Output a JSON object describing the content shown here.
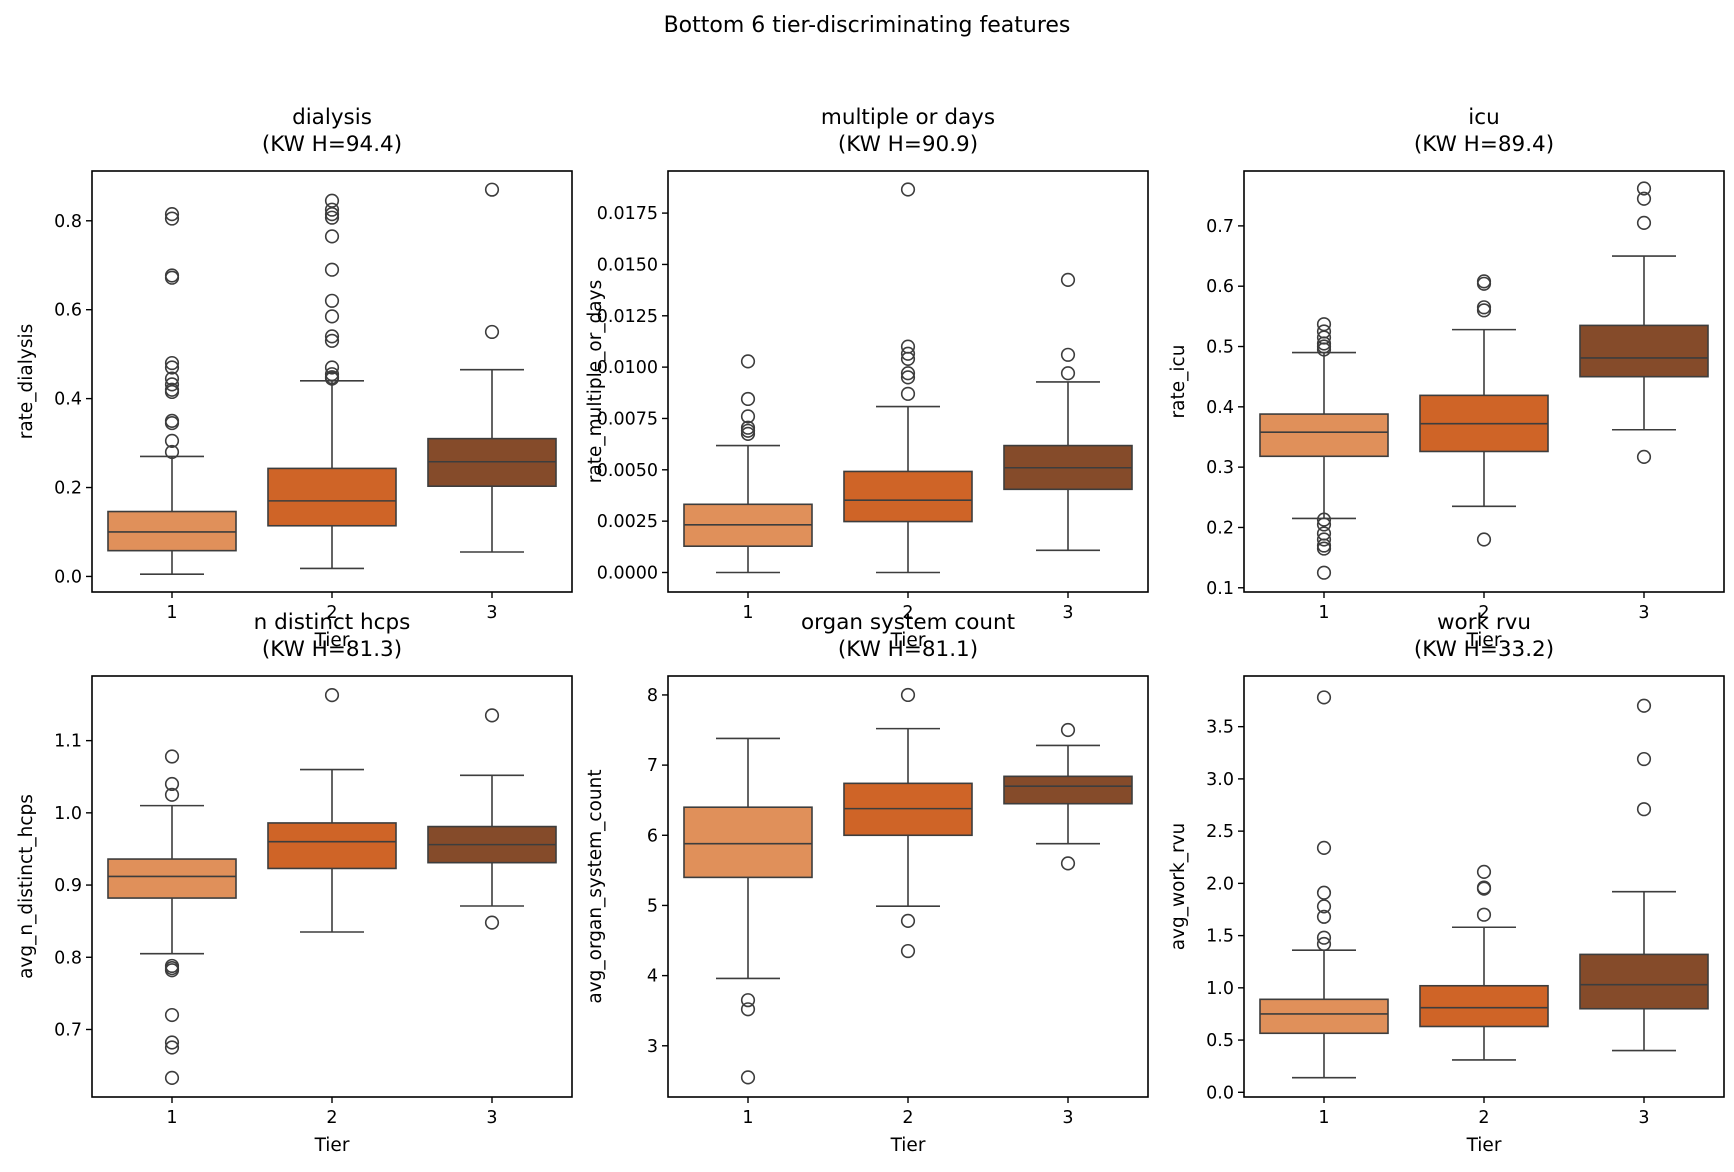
{
  "figure": {
    "suptitle": "Bottom 6 tier-discriminating features"
  },
  "palette": {
    "tier_colors": [
      "#E0905A",
      "#CF6427",
      "#854B2A"
    ],
    "edge": "#3d3d3d",
    "axes": "#000000",
    "background": "#ffffff"
  },
  "chart_data": [
    {
      "type": "boxplot",
      "title": "dialysis",
      "subtitle": "(KW H=94.4)",
      "xlabel": "Tier",
      "ylabel": "rate_dialysis",
      "categories": [
        "1",
        "2",
        "3"
      ],
      "ylim": [
        -0.035,
        0.912
      ],
      "yticks": [
        0.0,
        0.2,
        0.4,
        0.6,
        0.8
      ],
      "ytick_labels": [
        "0.0",
        "0.2",
        "0.4",
        "0.6",
        "0.8"
      ],
      "boxes": [
        {
          "q1": 0.058,
          "median": 0.1,
          "q3": 0.146,
          "whisker_low": 0.005,
          "whisker_high": 0.27,
          "outliers": [
            0.815,
            0.805,
            0.677,
            0.672,
            0.48,
            0.47,
            0.445,
            0.432,
            0.42,
            0.415,
            0.35,
            0.345,
            0.305,
            0.28
          ]
        },
        {
          "q1": 0.114,
          "median": 0.17,
          "q3": 0.243,
          "whisker_low": 0.018,
          "whisker_high": 0.44,
          "outliers": [
            0.845,
            0.825,
            0.815,
            0.807,
            0.765,
            0.69,
            0.62,
            0.585,
            0.54,
            0.53,
            0.47,
            0.455,
            0.448,
            0.445
          ]
        },
        {
          "q1": 0.203,
          "median": 0.258,
          "q3": 0.31,
          "whisker_low": 0.055,
          "whisker_high": 0.465,
          "outliers": [
            0.87,
            0.55
          ]
        }
      ]
    },
    {
      "type": "boxplot",
      "title": "multiple or days",
      "subtitle": "(KW H=90.9)",
      "xlabel": "Tier",
      "ylabel": "rate_multiple_or_days",
      "categories": [
        "1",
        "2",
        "3"
      ],
      "ylim": [
        -0.00095,
        0.01955
      ],
      "yticks": [
        0.0,
        0.0025,
        0.005,
        0.0075,
        0.01,
        0.0125,
        0.015,
        0.0175
      ],
      "ytick_labels": [
        "0.0000",
        "0.0025",
        "0.0050",
        "0.0075",
        "0.0100",
        "0.0125",
        "0.0150",
        "0.0175"
      ],
      "boxes": [
        {
          "q1": 0.00128,
          "median": 0.00232,
          "q3": 0.00332,
          "whisker_low": 0.0,
          "whisker_high": 0.00618,
          "outliers": [
            0.01028,
            0.00845,
            0.0076,
            0.00705,
            0.0069,
            0.00675
          ]
        },
        {
          "q1": 0.00248,
          "median": 0.00352,
          "q3": 0.00492,
          "whisker_low": 0.0,
          "whisker_high": 0.00808,
          "outliers": [
            0.01865,
            0.011,
            0.01065,
            0.0104,
            0.0097,
            0.0095,
            0.0087
          ]
        },
        {
          "q1": 0.00405,
          "median": 0.0051,
          "q3": 0.00618,
          "whisker_low": 0.00108,
          "whisker_high": 0.00928,
          "outliers": [
            0.01425,
            0.0106,
            0.0097
          ]
        }
      ]
    },
    {
      "type": "boxplot",
      "title": "icu",
      "subtitle": "(KW H=89.4)",
      "xlabel": "Tier",
      "ylabel": "rate_icu",
      "categories": [
        "1",
        "2",
        "3"
      ],
      "ylim": [
        0.093,
        0.791
      ],
      "yticks": [
        0.1,
        0.2,
        0.3,
        0.4,
        0.5,
        0.6,
        0.7
      ],
      "ytick_labels": [
        "0.1",
        "0.2",
        "0.3",
        "0.4",
        "0.5",
        "0.6",
        "0.7"
      ],
      "boxes": [
        {
          "q1": 0.318,
          "median": 0.358,
          "q3": 0.388,
          "whisker_low": 0.215,
          "whisker_high": 0.49,
          "outliers": [
            0.537,
            0.525,
            0.515,
            0.505,
            0.5,
            0.495,
            0.213,
            0.205,
            0.19,
            0.18,
            0.17,
            0.165,
            0.125
          ]
        },
        {
          "q1": 0.326,
          "median": 0.372,
          "q3": 0.419,
          "whisker_low": 0.235,
          "whisker_high": 0.528,
          "outliers": [
            0.608,
            0.604,
            0.565,
            0.56,
            0.18
          ]
        },
        {
          "q1": 0.45,
          "median": 0.481,
          "q3": 0.535,
          "whisker_low": 0.362,
          "whisker_high": 0.65,
          "outliers": [
            0.762,
            0.745,
            0.705,
            0.317
          ]
        }
      ]
    },
    {
      "type": "boxplot",
      "title": "n distinct hcps",
      "subtitle": "(KW H=81.3)",
      "xlabel": "Tier",
      "ylabel": "avg_n_distinct_hcps",
      "categories": [
        "1",
        "2",
        "3"
      ],
      "ylim": [
        0.6065,
        1.1895
      ],
      "yticks": [
        0.7,
        0.8,
        0.9,
        1.0,
        1.1
      ],
      "ytick_labels": [
        "0.7",
        "0.8",
        "0.9",
        "1.0",
        "1.1"
      ],
      "boxes": [
        {
          "q1": 0.882,
          "median": 0.912,
          "q3": 0.936,
          "whisker_low": 0.805,
          "whisker_high": 1.01,
          "outliers": [
            1.078,
            1.04,
            1.025,
            0.788,
            0.785,
            0.782,
            0.72,
            0.682,
            0.675,
            0.633
          ]
        },
        {
          "q1": 0.923,
          "median": 0.96,
          "q3": 0.986,
          "whisker_low": 0.835,
          "whisker_high": 1.06,
          "outliers": [
            1.163
          ]
        },
        {
          "q1": 0.931,
          "median": 0.956,
          "q3": 0.981,
          "whisker_low": 0.871,
          "whisker_high": 1.052,
          "outliers": [
            1.135,
            0.848
          ]
        }
      ]
    },
    {
      "type": "boxplot",
      "title": "organ system count",
      "subtitle": "(KW H=81.1)",
      "xlabel": "Tier",
      "ylabel": "avg_organ_system_count",
      "categories": [
        "1",
        "2",
        "3"
      ],
      "ylim": [
        2.27,
        8.27
      ],
      "yticks": [
        3,
        4,
        5,
        6,
        7,
        8
      ],
      "ytick_labels": [
        "3",
        "4",
        "5",
        "6",
        "7",
        "8"
      ],
      "boxes": [
        {
          "q1": 5.4,
          "median": 5.88,
          "q3": 6.4,
          "whisker_low": 3.96,
          "whisker_high": 7.38,
          "outliers": [
            3.65,
            3.52,
            2.55
          ]
        },
        {
          "q1": 6.0,
          "median": 6.38,
          "q3": 6.74,
          "whisker_low": 4.99,
          "whisker_high": 7.52,
          "outliers": [
            8.0,
            4.78,
            4.35
          ]
        },
        {
          "q1": 6.45,
          "median": 6.7,
          "q3": 6.84,
          "whisker_low": 5.88,
          "whisker_high": 7.28,
          "outliers": [
            7.5,
            5.6
          ]
        }
      ]
    },
    {
      "type": "boxplot",
      "title": "work rvu",
      "subtitle": "(KW H=33.2)",
      "xlabel": "Tier",
      "ylabel": "avg_work_rvu",
      "categories": [
        "1",
        "2",
        "3"
      ],
      "ylim": [
        -0.045,
        3.985
      ],
      "yticks": [
        0.0,
        0.5,
        1.0,
        1.5,
        2.0,
        2.5,
        3.0,
        3.5
      ],
      "ytick_labels": [
        "0.0",
        "0.5",
        "1.0",
        "1.5",
        "2.0",
        "2.5",
        "3.0",
        "3.5"
      ],
      "boxes": [
        {
          "q1": 0.565,
          "median": 0.75,
          "q3": 0.89,
          "whisker_low": 0.14,
          "whisker_high": 1.36,
          "outliers": [
            3.78,
            2.34,
            1.91,
            1.78,
            1.68,
            1.48,
            1.42
          ]
        },
        {
          "q1": 0.63,
          "median": 0.81,
          "q3": 1.02,
          "whisker_low": 0.31,
          "whisker_high": 1.58,
          "outliers": [
            2.11,
            1.96,
            1.95,
            1.7
          ]
        },
        {
          "q1": 0.8,
          "median": 1.03,
          "q3": 1.32,
          "whisker_low": 0.4,
          "whisker_high": 1.92,
          "outliers": [
            3.7,
            3.19,
            2.71
          ]
        }
      ]
    }
  ]
}
